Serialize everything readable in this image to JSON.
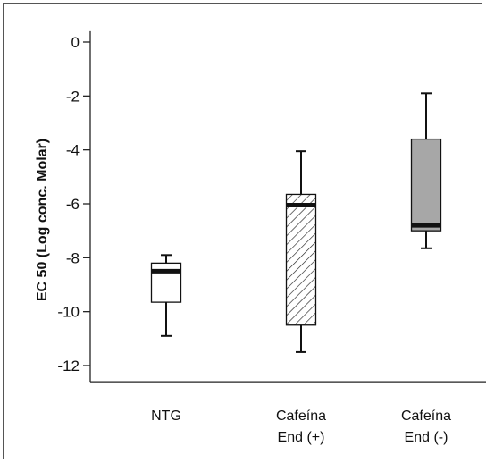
{
  "chart_data": {
    "type": "box",
    "ylabel": "EC 50 (Log  conc. Molar)",
    "xlabel": "",
    "ylim": [
      -12.6,
      0.4
    ],
    "yticks": [
      0,
      -2,
      -4,
      -6,
      -8,
      -10,
      -12
    ],
    "grid": false,
    "categories": [
      {
        "lines": [
          "NTG"
        ]
      },
      {
        "lines": [
          "Cafeína",
          "End (+)"
        ]
      },
      {
        "lines": [
          "Cafeína",
          "End (-)"
        ]
      }
    ],
    "boxes": [
      {
        "whisker_high": -7.9,
        "q3": -8.2,
        "median": -8.5,
        "q1": -9.65,
        "whisker_low": -10.9,
        "fill": "#ffffff",
        "pattern": "none"
      },
      {
        "whisker_high": -4.05,
        "q3": -5.65,
        "median": -6.05,
        "q1": -10.5,
        "whisker_low": -11.5,
        "fill": "#ffffff",
        "pattern": "hatch"
      },
      {
        "whisker_high": -1.9,
        "q3": -3.6,
        "median": -6.8,
        "q1": -7.0,
        "whisker_low": -7.65,
        "fill": "#a7a7a7",
        "pattern": "none"
      }
    ]
  }
}
